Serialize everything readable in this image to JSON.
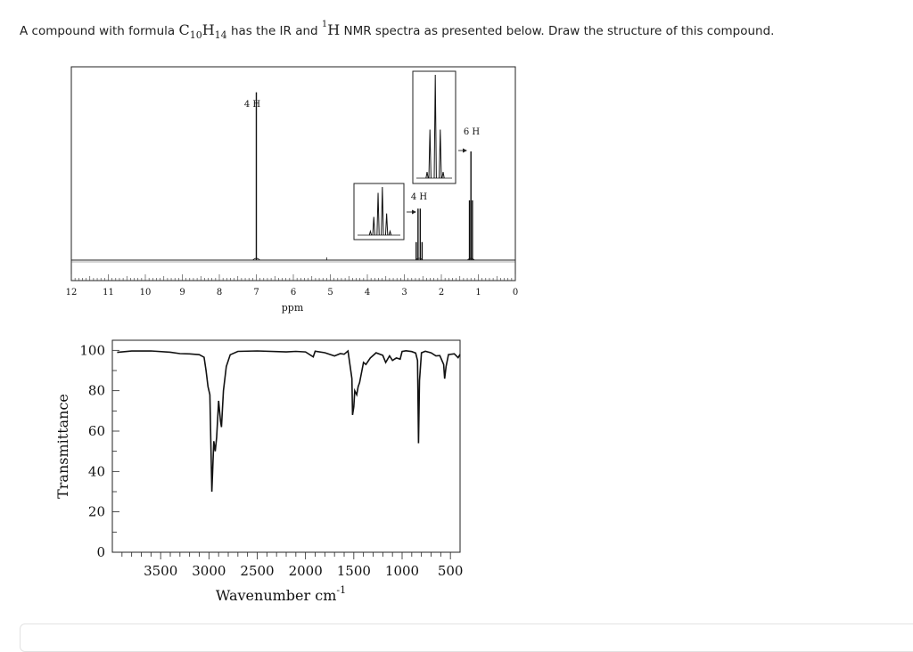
{
  "question": {
    "prefix": "A compound with formula ",
    "f_c": "C",
    "f_c_sub": "10",
    "f_h": "H",
    "f_h_sub": "14",
    "middle": " has the IR and ",
    "nmr_sup": "1",
    "nmr_h": "H",
    "suffix": " NMR spectra as presented below. Draw the structure of this compound."
  },
  "chart_data": [
    {
      "type": "line",
      "name": "1H NMR spectrum",
      "xlabel": "ppm",
      "xlim": [
        12,
        0
      ],
      "x_reversed": true,
      "x_ticks": [
        12,
        11,
        10,
        9,
        8,
        7,
        6,
        5,
        4,
        3,
        2,
        1,
        0
      ],
      "peaks": [
        {
          "shift": 7.0,
          "multiplicity": "singlet",
          "height": 0.88,
          "label": "4 H"
        },
        {
          "shift": 2.6,
          "multiplicity": "quartet",
          "height": 0.27,
          "label": "4 H",
          "inset": true
        },
        {
          "shift": 1.2,
          "multiplicity": "triplet",
          "height": 0.57,
          "label": "6 H",
          "inset": true
        }
      ],
      "grid": false
    },
    {
      "type": "line",
      "name": "IR spectrum",
      "xlabel": "Wavenumber cm",
      "xlabel_sup": "-1",
      "ylabel": "Transmittance",
      "xlim": [
        4000,
        400
      ],
      "x_reversed": true,
      "ylim": [
        0,
        105
      ],
      "x_ticks": [
        3500,
        3000,
        2500,
        2000,
        1500,
        1000,
        500
      ],
      "y_ticks": [
        0,
        20,
        40,
        60,
        80,
        100
      ],
      "points": [
        [
          3950,
          99
        ],
        [
          3800,
          99
        ],
        [
          3600,
          99
        ],
        [
          3400,
          99
        ],
        [
          3300,
          99
        ],
        [
          3200,
          99
        ],
        [
          3100,
          98
        ],
        [
          3050,
          96
        ],
        [
          3030,
          90
        ],
        [
          3010,
          82
        ],
        [
          2990,
          78
        ],
        [
          2970,
          30
        ],
        [
          2950,
          55
        ],
        [
          2935,
          50
        ],
        [
          2920,
          57
        ],
        [
          2900,
          75
        ],
        [
          2880,
          65
        ],
        [
          2870,
          62
        ],
        [
          2850,
          80
        ],
        [
          2820,
          92
        ],
        [
          2780,
          97
        ],
        [
          2700,
          99
        ],
        [
          2500,
          100
        ],
        [
          2200,
          100
        ],
        [
          2100,
          100
        ],
        [
          2000,
          99
        ],
        [
          1920,
          96
        ],
        [
          1900,
          99
        ],
        [
          1800,
          99
        ],
        [
          1700,
          98
        ],
        [
          1640,
          99
        ],
        [
          1600,
          98
        ],
        [
          1560,
          99
        ],
        [
          1520,
          86
        ],
        [
          1513,
          68
        ],
        [
          1500,
          72
        ],
        [
          1490,
          80
        ],
        [
          1470,
          78
        ],
        [
          1455,
          82
        ],
        [
          1440,
          84
        ],
        [
          1400,
          94
        ],
        [
          1375,
          93
        ],
        [
          1330,
          97
        ],
        [
          1270,
          99
        ],
        [
          1200,
          97
        ],
        [
          1170,
          94
        ],
        [
          1130,
          97
        ],
        [
          1100,
          95
        ],
        [
          1060,
          97
        ],
        [
          1020,
          96
        ],
        [
          1000,
          99
        ],
        [
          960,
          99
        ],
        [
          900,
          99
        ],
        [
          860,
          99
        ],
        [
          840,
          95
        ],
        [
          830,
          54
        ],
        [
          820,
          85
        ],
        [
          800,
          98
        ],
        [
          760,
          99
        ],
        [
          700,
          99
        ],
        [
          650,
          98
        ],
        [
          610,
          98
        ],
        [
          570,
          93
        ],
        [
          560,
          86
        ],
        [
          545,
          92
        ],
        [
          520,
          98
        ],
        [
          460,
          99
        ],
        [
          420,
          97
        ],
        [
          400,
          98
        ]
      ],
      "grid": false
    }
  ]
}
